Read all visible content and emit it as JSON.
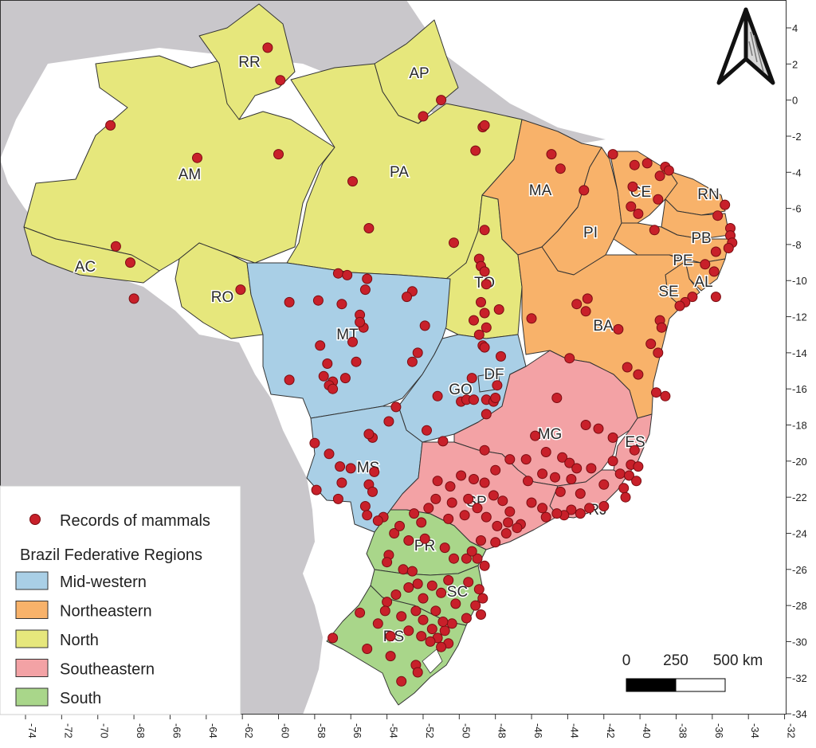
{
  "map": {
    "colors": {
      "ocean": "#ffffff",
      "neighbor_land": "#c9c7cb",
      "mid_western": "#a9cfe6",
      "northeastern": "#f8b26a",
      "north": "#e6e77c",
      "southeastern": "#f3a2a5",
      "south": "#a9d68a",
      "record": "#c8202a"
    },
    "states": {
      "RR": "RR",
      "AP": "AP",
      "AM": "AM",
      "PA": "PA",
      "AC": "AC",
      "RO": "RO",
      "TO": "TO",
      "MA": "MA",
      "CE": "CE",
      "RN": "RN",
      "PB": "PB",
      "PE": "PE",
      "AL": "AL",
      "SE": "SE",
      "PI": "PI",
      "BA": "BA",
      "MT": "MT",
      "GO": "GO",
      "DF": "DF",
      "MS": "MS",
      "MG": "MG",
      "ES": "ES",
      "SP": "SP",
      "RJ": "RJ",
      "PR": "PR",
      "SC": "SC",
      "RS": "RS"
    },
    "longitude_ticks": [
      "-74",
      "-72",
      "-70",
      "-68",
      "-66",
      "-64",
      "-62",
      "-60",
      "-58",
      "-56",
      "-54",
      "-52",
      "-50",
      "-48",
      "-46",
      "-44",
      "-42",
      "-40",
      "-38",
      "-36",
      "-34",
      "-32"
    ],
    "latitude_ticks": [
      "4",
      "2",
      "0",
      "-2",
      "-4",
      "-6",
      "-8",
      "-10",
      "-12",
      "-14",
      "-16",
      "-18",
      "-20",
      "-22",
      "-24",
      "-26",
      "-28",
      "-30",
      "-32",
      "-34"
    ],
    "north_arrow": "north-arrow-icon",
    "scale_bar": {
      "zero": "0",
      "mid": "250",
      "end": "500 km"
    }
  },
  "legend": {
    "records_label": "Records of mammals",
    "regions_title": "Brazil Federative Regions",
    "items": [
      {
        "label": "Mid-western",
        "color": "#a9cfe6"
      },
      {
        "label": "Northeastern",
        "color": "#f8b26a"
      },
      {
        "label": "North",
        "color": "#e6e77c"
      },
      {
        "label": "Southeastern",
        "color": "#f3a2a5"
      },
      {
        "label": "South",
        "color": "#a9d68a"
      }
    ]
  },
  "records": [
    [
      -60.6,
      2.9
    ],
    [
      -59.9,
      1.1
    ],
    [
      -51.0,
      0.0
    ],
    [
      -52.0,
      -0.9
    ],
    [
      -48.7,
      -1.5
    ],
    [
      -48.6,
      -1.4
    ],
    [
      -69.3,
      -1.4
    ],
    [
      -64.5,
      -3.2
    ],
    [
      -60.0,
      -3.0
    ],
    [
      -49.1,
      -2.8
    ],
    [
      -55.9,
      -4.5
    ],
    [
      -55.0,
      -7.1
    ],
    [
      -69.0,
      -8.1
    ],
    [
      -68.2,
      -9.0
    ],
    [
      -68.0,
      -11.0
    ],
    [
      -62.1,
      -10.5
    ],
    [
      -50.3,
      -7.9
    ],
    [
      -48.6,
      -7.2
    ],
    [
      -48.9,
      -8.8
    ],
    [
      -48.8,
      -9.2
    ],
    [
      -48.6,
      -9.5
    ],
    [
      -48.5,
      -10.2
    ],
    [
      -48.8,
      -11.2
    ],
    [
      -48.6,
      -11.8
    ],
    [
      -47.8,
      -11.6
    ],
    [
      -49.2,
      -12.2
    ],
    [
      -48.5,
      -12.6
    ],
    [
      -48.9,
      -13.0
    ],
    [
      -48.7,
      -13.6
    ],
    [
      -44.9,
      -3.0
    ],
    [
      -44.4,
      -3.8
    ],
    [
      -43.1,
      -5.0
    ],
    [
      -41.5,
      -3.0
    ],
    [
      -40.3,
      -3.6
    ],
    [
      -39.6,
      -3.5
    ],
    [
      -38.6,
      -3.7
    ],
    [
      -38.4,
      -3.9
    ],
    [
      -38.9,
      -4.2
    ],
    [
      -40.4,
      -4.8
    ],
    [
      -40.5,
      -5.9
    ],
    [
      -40.1,
      -6.3
    ],
    [
      -39.0,
      -5.5
    ],
    [
      -35.3,
      -5.8
    ],
    [
      -35.7,
      -6.4
    ],
    [
      -35.0,
      -7.1
    ],
    [
      -35.0,
      -7.5
    ],
    [
      -34.9,
      -7.9
    ],
    [
      -35.1,
      -8.2
    ],
    [
      -35.8,
      -8.4
    ],
    [
      -39.2,
      -7.2
    ],
    [
      -36.4,
      -9.1
    ],
    [
      -35.9,
      -9.5
    ],
    [
      -35.8,
      -10.9
    ],
    [
      -37.1,
      -10.9
    ],
    [
      -37.5,
      -11.2
    ],
    [
      -37.8,
      -11.4
    ],
    [
      -43.5,
      -11.3
    ],
    [
      -42.9,
      -11.0
    ],
    [
      -43.0,
      -11.7
    ],
    [
      -46.0,
      -12.1
    ],
    [
      -41.2,
      -12.7
    ],
    [
      -38.9,
      -12.2
    ],
    [
      -38.8,
      -12.6
    ],
    [
      -39.4,
      -13.5
    ],
    [
      -39.0,
      -14.0
    ],
    [
      -43.9,
      -14.3
    ],
    [
      -40.7,
      -14.8
    ],
    [
      -40.1,
      -15.2
    ],
    [
      -39.1,
      -16.2
    ],
    [
      -38.6,
      -16.4
    ],
    [
      -56.7,
      -9.6
    ],
    [
      -56.2,
      -9.7
    ],
    [
      -55.1,
      -9.9
    ],
    [
      -55.2,
      -10.5
    ],
    [
      -52.6,
      -10.6
    ],
    [
      -52.9,
      -10.9
    ],
    [
      -59.4,
      -11.2
    ],
    [
      -57.8,
      -11.1
    ],
    [
      -56.5,
      -11.3
    ],
    [
      -55.5,
      -11.9
    ],
    [
      -55.3,
      -12.6
    ],
    [
      -51.9,
      -12.5
    ],
    [
      -55.5,
      -12.3
    ],
    [
      -55.9,
      -13.4
    ],
    [
      -57.7,
      -13.6
    ],
    [
      -52.3,
      -14.0
    ],
    [
      -52.6,
      -14.5
    ],
    [
      -57.3,
      -14.6
    ],
    [
      -55.7,
      -14.5
    ],
    [
      -57.5,
      -15.3
    ],
    [
      -59.4,
      -15.5
    ],
    [
      -56.3,
      -15.4
    ],
    [
      -57.0,
      -15.6
    ],
    [
      -57.2,
      -15.8
    ],
    [
      -57.0,
      -16.0
    ],
    [
      -48.6,
      -13.7
    ],
    [
      -47.7,
      -14.2
    ],
    [
      -49.3,
      -15.4
    ],
    [
      -47.9,
      -15.8
    ],
    [
      -48.5,
      -16.6
    ],
    [
      -48.1,
      -16.7
    ],
    [
      -49.9,
      -16.7
    ],
    [
      -49.6,
      -16.6
    ],
    [
      -49.2,
      -16.6
    ],
    [
      -48.0,
      -16.5
    ],
    [
      -51.2,
      -16.4
    ],
    [
      -53.5,
      -17.0
    ],
    [
      -48.5,
      -17.4
    ],
    [
      -53.9,
      -17.8
    ],
    [
      -51.8,
      -18.3
    ],
    [
      -50.9,
      -18.9
    ],
    [
      -58.0,
      -19.0
    ],
    [
      -54.8,
      -18.7
    ],
    [
      -55.0,
      -18.5
    ],
    [
      -57.2,
      -19.6
    ],
    [
      -56.6,
      -20.3
    ],
    [
      -56.0,
      -20.4
    ],
    [
      -54.7,
      -20.6
    ],
    [
      -57.9,
      -21.6
    ],
    [
      -55.0,
      -21.3
    ],
    [
      -54.8,
      -21.7
    ],
    [
      -56.5,
      -21.2
    ],
    [
      -56.7,
      -22.1
    ],
    [
      -55.2,
      -22.5
    ],
    [
      -55.1,
      -23.0
    ],
    [
      -54.2,
      -23.1
    ],
    [
      -54.5,
      -23.3
    ],
    [
      -46.3,
      -19.9
    ],
    [
      -48.0,
      -20.5
    ],
    [
      -47.2,
      -19.9
    ],
    [
      -48.6,
      -19.4
    ],
    [
      -44.6,
      -16.5
    ],
    [
      -43.0,
      -18.0
    ],
    [
      -42.3,
      -18.2
    ],
    [
      -41.5,
      -18.7
    ],
    [
      -45.8,
      -18.6
    ],
    [
      -45.2,
      -19.5
    ],
    [
      -44.3,
      -19.8
    ],
    [
      -43.9,
      -20.1
    ],
    [
      -43.5,
      -20.4
    ],
    [
      -42.7,
      -20.4
    ],
    [
      -43.8,
      -21.0
    ],
    [
      -44.7,
      -20.9
    ],
    [
      -45.4,
      -20.7
    ],
    [
      -46.2,
      -21.1
    ],
    [
      -44.4,
      -21.7
    ],
    [
      -43.3,
      -21.8
    ],
    [
      -42.0,
      -21.3
    ],
    [
      -40.3,
      -19.4
    ],
    [
      -40.5,
      -20.2
    ],
    [
      -41.1,
      -20.7
    ],
    [
      -40.9,
      -21.5
    ],
    [
      -40.1,
      -20.3
    ],
    [
      -40.6,
      -20.8
    ],
    [
      -40.2,
      -21.1
    ],
    [
      -41.5,
      -20.0
    ],
    [
      -40.8,
      -22.0
    ],
    [
      -42.0,
      -22.5
    ],
    [
      -42.8,
      -22.6
    ],
    [
      -43.3,
      -22.9
    ],
    [
      -43.8,
      -22.7
    ],
    [
      -44.2,
      -23.0
    ],
    [
      -44.6,
      -22.9
    ],
    [
      -45.2,
      -23.1
    ],
    [
      -46.6,
      -23.5
    ],
    [
      -46.8,
      -23.7
    ],
    [
      -47.3,
      -23.4
    ],
    [
      -47.9,
      -23.6
    ],
    [
      -47.2,
      -22.8
    ],
    [
      -46.0,
      -22.3
    ],
    [
      -45.4,
      -22.6
    ],
    [
      -47.6,
      -22.2
    ],
    [
      -48.1,
      -21.9
    ],
    [
      -48.6,
      -21.2
    ],
    [
      -49.2,
      -21.0
    ],
    [
      -49.9,
      -20.8
    ],
    [
      -50.5,
      -21.4
    ],
    [
      -51.2,
      -21.1
    ],
    [
      -51.3,
      -22.1
    ],
    [
      -50.4,
      -22.3
    ],
    [
      -49.5,
      -22.1
    ],
    [
      -49.0,
      -22.6
    ],
    [
      -48.5,
      -23.1
    ],
    [
      -47.4,
      -24.0
    ],
    [
      -48.0,
      -24.5
    ],
    [
      -48.8,
      -24.4
    ],
    [
      -49.7,
      -23.0
    ],
    [
      -50.6,
      -23.2
    ],
    [
      -52.1,
      -23.4
    ],
    [
      -51.7,
      -22.6
    ],
    [
      -52.5,
      -22.9
    ],
    [
      -53.6,
      -24.0
    ],
    [
      -53.3,
      -23.6
    ],
    [
      -52.8,
      -24.4
    ],
    [
      -51.9,
      -24.3
    ],
    [
      -50.3,
      -25.4
    ],
    [
      -49.6,
      -25.4
    ],
    [
      -49.0,
      -25.4
    ],
    [
      -48.6,
      -25.8
    ],
    [
      -49.3,
      -25.0
    ],
    [
      -50.8,
      -24.8
    ],
    [
      -53.9,
      -25.2
    ],
    [
      -54.0,
      -25.6
    ],
    [
      -53.1,
      -26.0
    ],
    [
      -52.6,
      -26.1
    ],
    [
      -52.3,
      -26.8
    ],
    [
      -51.5,
      -26.9
    ],
    [
      -50.6,
      -26.6
    ],
    [
      -49.5,
      -26.7
    ],
    [
      -48.9,
      -27.1
    ],
    [
      -48.7,
      -27.6
    ],
    [
      -49.1,
      -28.0
    ],
    [
      -48.8,
      -28.5
    ],
    [
      -49.6,
      -28.7
    ],
    [
      -50.2,
      -27.9
    ],
    [
      -51.0,
      -27.3
    ],
    [
      -52.8,
      -27.0
    ],
    [
      -53.5,
      -27.4
    ],
    [
      -52.0,
      -27.6
    ],
    [
      -54.0,
      -27.8
    ],
    [
      -55.5,
      -28.4
    ],
    [
      -54.1,
      -28.3
    ],
    [
      -53.2,
      -28.6
    ],
    [
      -52.4,
      -28.3
    ],
    [
      -51.3,
      -28.3
    ],
    [
      -50.4,
      -29.0
    ],
    [
      -50.8,
      -29.4
    ],
    [
      -51.2,
      -29.8
    ],
    [
      -51.5,
      -29.3
    ],
    [
      -52.1,
      -29.7
    ],
    [
      -52.8,
      -29.4
    ],
    [
      -53.8,
      -29.7
    ],
    [
      -54.5,
      -29.0
    ],
    [
      -57.0,
      -29.8
    ],
    [
      -55.1,
      -30.4
    ],
    [
      -53.8,
      -30.8
    ],
    [
      -52.4,
      -31.3
    ],
    [
      -52.3,
      -31.7
    ],
    [
      -53.2,
      -32.2
    ],
    [
      -50.6,
      -30.1
    ],
    [
      -51.0,
      -30.3
    ],
    [
      -51.6,
      -30.0
    ],
    [
      -50.9,
      -28.9
    ],
    [
      -52.0,
      -28.8
    ]
  ]
}
